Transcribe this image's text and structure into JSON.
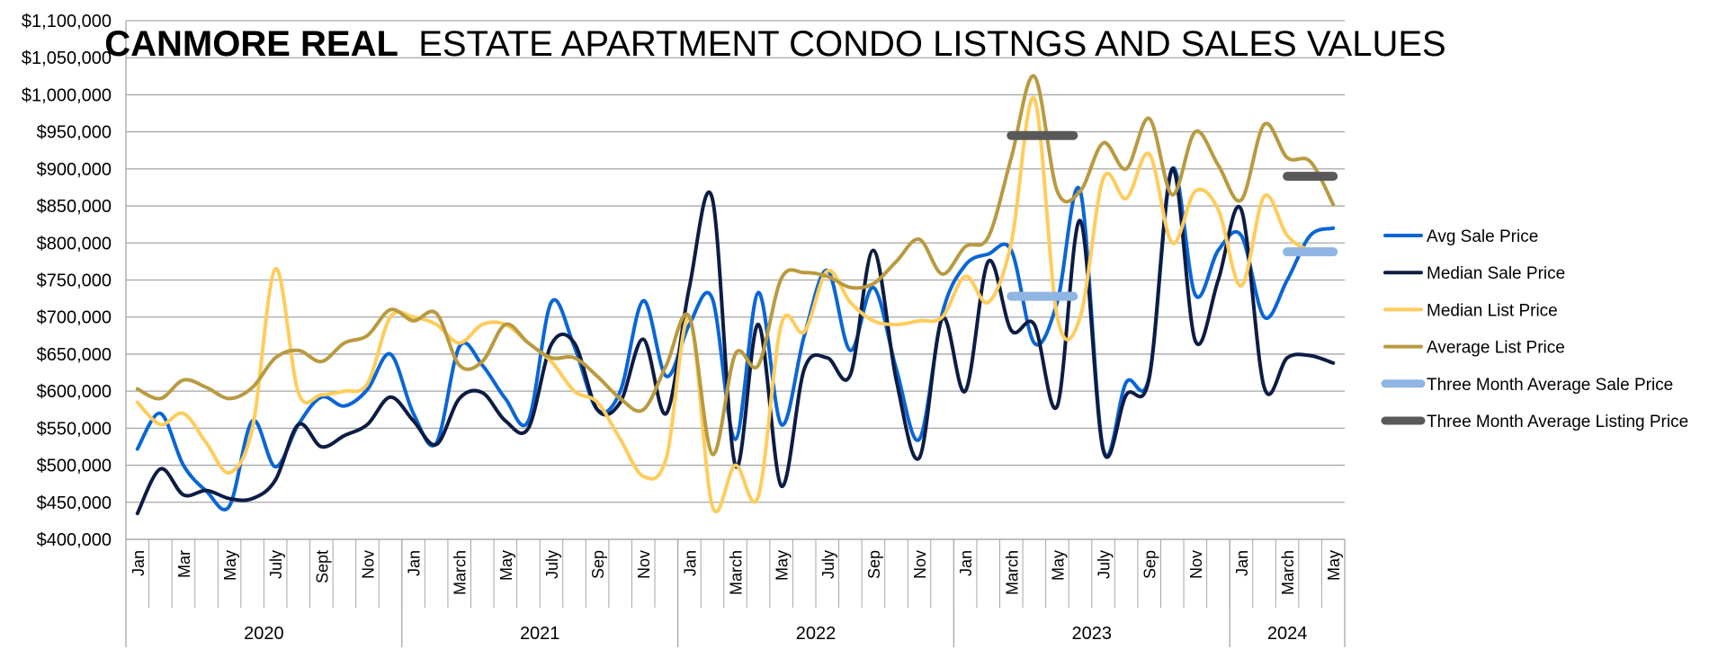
{
  "chart_data": {
    "type": "line",
    "title_bold": "CANMORE REAL",
    "title_rest": "ESTATE  APARTMENT CONDO LISTNGS AND SALES VALUES",
    "xlabel": "",
    "ylabel": "",
    "ylim": [
      400000,
      1100000
    ],
    "ytick_step": 50000,
    "ytick_labels": [
      "$400,000",
      "$450,000",
      "$500,000",
      "$550,000",
      "$600,000",
      "$650,000",
      "$700,000",
      "$750,000",
      "$800,000",
      "$850,000",
      "$900,000",
      "$950,000",
      "$1,000,000",
      "$1,050,000",
      "$1,100,000"
    ],
    "grid": true,
    "legend_position": "right",
    "month_tick_labels": [
      "Jan",
      "",
      "Mar",
      "",
      "May",
      "",
      "July",
      "",
      "Sept",
      "",
      "Nov",
      "",
      "Jan",
      "",
      "March",
      "",
      "May",
      "",
      "July",
      "",
      "Sep",
      "",
      "Nov",
      "",
      "Jan",
      "",
      "March",
      "",
      "May",
      "",
      "July",
      "",
      "Sep",
      "",
      "Nov",
      "",
      "Jan",
      "",
      "March",
      "",
      "May",
      "",
      "July",
      "",
      "Sep",
      "",
      "Nov",
      "",
      "Jan",
      "",
      "March",
      "",
      "May"
    ],
    "years": [
      {
        "label": "2020",
        "start": 0,
        "end": 12
      },
      {
        "label": "2021",
        "start": 12,
        "end": 24
      },
      {
        "label": "2022",
        "start": 24,
        "end": 36
      },
      {
        "label": "2023",
        "start": 36,
        "end": 48
      },
      {
        "label": "2024",
        "start": 48,
        "end": 53
      }
    ],
    "series": [
      {
        "name": "Avg Sale Price",
        "color": "#0a66d6",
        "kind": "line",
        "values": [
          522000,
          570000,
          500000,
          465000,
          445000,
          560000,
          498000,
          555000,
          592000,
          580000,
          602000,
          650000,
          570000,
          530000,
          660000,
          635000,
          590000,
          560000,
          720000,
          660000,
          575000,
          600000,
          722000,
          620000,
          690000,
          725000,
          535000,
          733000,
          555000,
          675000,
          763000,
          655000,
          740000,
          630000,
          535000,
          705000,
          770000,
          785000,
          790000,
          665000,
          720000,
          870000,
          522000,
          612000,
          620000,
          900000,
          730000,
          790000,
          810000,
          700000,
          750000,
          810000,
          820000
        ]
      },
      {
        "name": "Median Sale Price",
        "color": "#0c1c44",
        "kind": "line",
        "values": [
          435000,
          495000,
          460000,
          466000,
          455000,
          455000,
          480000,
          555000,
          525000,
          540000,
          555000,
          592000,
          560000,
          528000,
          590000,
          598000,
          560000,
          550000,
          663000,
          665000,
          575000,
          585000,
          670000,
          570000,
          740000,
          860000,
          500000,
          690000,
          472000,
          630000,
          645000,
          622000,
          790000,
          615000,
          510000,
          698000,
          600000,
          775000,
          682000,
          690000,
          580000,
          830000,
          520000,
          595000,
          618000,
          900000,
          668000,
          750000,
          845000,
          605000,
          645000,
          648000,
          638000
        ]
      },
      {
        "name": "Median List Price",
        "color": "#ffcc5c",
        "kind": "line",
        "values": [
          585000,
          555000,
          570000,
          530000,
          490000,
          550000,
          765000,
          598000,
          595000,
          600000,
          610000,
          700000,
          700000,
          690000,
          665000,
          690000,
          690000,
          665000,
          640000,
          600000,
          585000,
          535000,
          485000,
          510000,
          700000,
          445000,
          500000,
          458000,
          690000,
          680000,
          762000,
          720000,
          695000,
          690000,
          695000,
          700000,
          755000,
          720000,
          800000,
          995000,
          700000,
          700000,
          887000,
          860000,
          920000,
          800000,
          870000,
          845000,
          742000,
          863000,
          810000,
          790000,
          790000
        ]
      },
      {
        "name": "Average List Price",
        "color": "#b99a3f",
        "kind": "line",
        "values": [
          603000,
          590000,
          615000,
          605000,
          590000,
          605000,
          645000,
          655000,
          640000,
          665000,
          675000,
          710000,
          695000,
          705000,
          635000,
          640000,
          690000,
          665000,
          645000,
          645000,
          620000,
          590000,
          575000,
          635000,
          700000,
          515000,
          650000,
          635000,
          752000,
          760000,
          755000,
          740000,
          745000,
          775000,
          805000,
          758000,
          795000,
          808000,
          915000,
          1025000,
          870000,
          870000,
          935000,
          900000,
          968000,
          865000,
          950000,
          905000,
          858000,
          960000,
          915000,
          910000,
          852000
        ]
      },
      {
        "name": "Three Month Average Sale Price",
        "color": "#8fb5e3",
        "kind": "segment",
        "segments": [
          {
            "start": 38,
            "end": 40.7,
            "value": 728000
          },
          {
            "start": 50,
            "end": 52,
            "value": 788000
          }
        ]
      },
      {
        "name": "Three Month Average Listing Price",
        "color": "#595959",
        "kind": "segment",
        "segments": [
          {
            "start": 38,
            "end": 40.7,
            "value": 945000
          },
          {
            "start": 50,
            "end": 52,
            "value": 890000
          }
        ]
      }
    ]
  }
}
